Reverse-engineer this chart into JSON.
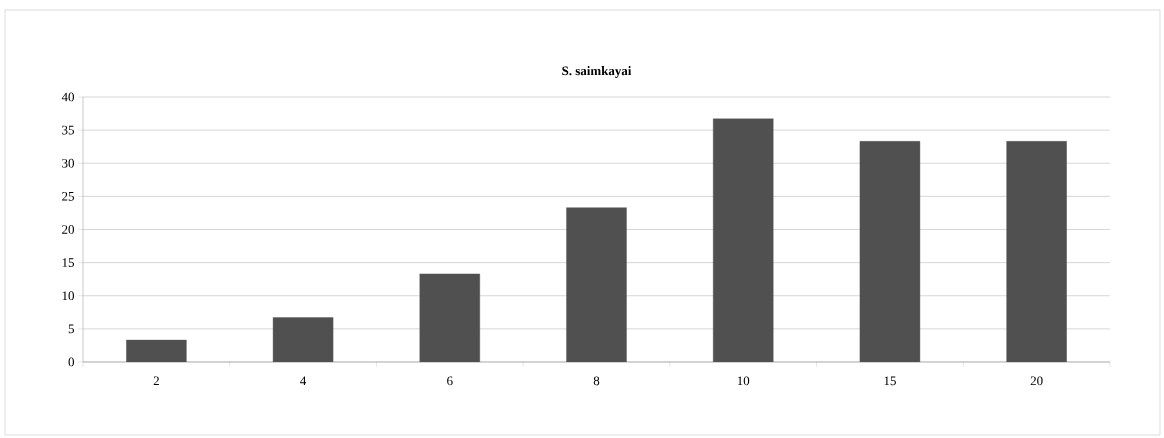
{
  "chart_data": {
    "type": "bar",
    "title": "S. saimkayai",
    "categories": [
      "2",
      "4",
      "6",
      "8",
      "10",
      "15",
      "20"
    ],
    "values": [
      3.3,
      6.7,
      13.3,
      23.3,
      36.7,
      33.3,
      33.3
    ],
    "color": "#505050",
    "ylim": [
      0,
      40
    ],
    "yticks": [
      0,
      5,
      10,
      15,
      20,
      25,
      30,
      35,
      40
    ],
    "grid": "y"
  }
}
